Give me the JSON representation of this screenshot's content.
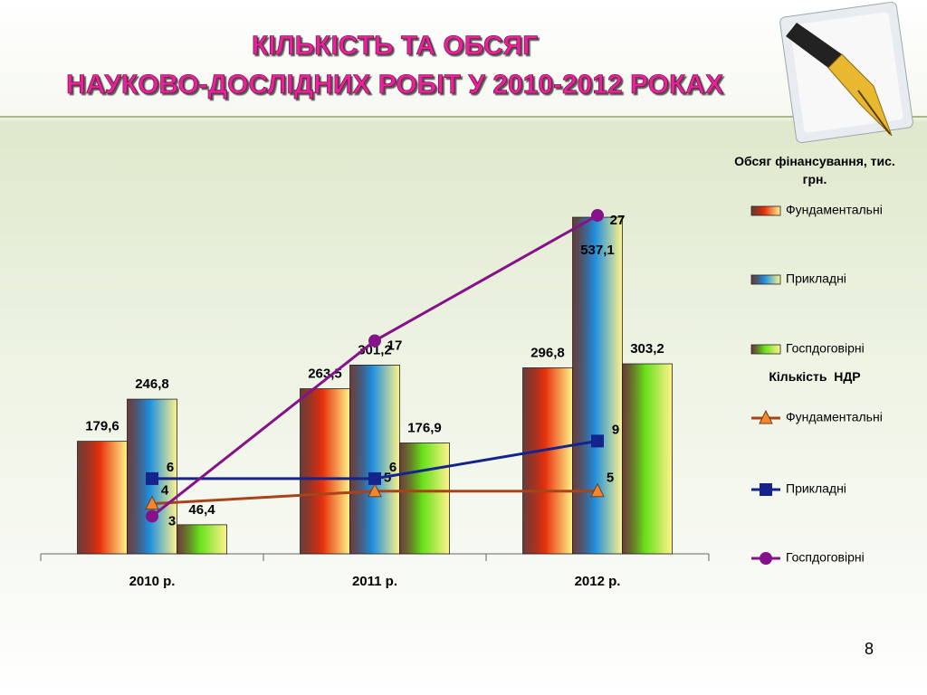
{
  "chart_data": {
    "type": "bar",
    "title": [
      "КІЛЬКІСТЬ ТА ОБСЯГ",
      "НАУКОВО-ДОСЛІДНИХ РОБІТ У 2010-2012 РОКАХ"
    ],
    "categories": [
      "2010 р.",
      "2011 р.",
      "2012 р."
    ],
    "bar_legend_title": "Обсяг фінансування, тис. грн.",
    "line_legend_title": "Кількість  НДР",
    "ylim": [
      0,
      600
    ],
    "y2lim": [
      0,
      30
    ],
    "series": [
      {
        "name": "Фундаментальні",
        "color": "#e8300c",
        "values": [
          179.6,
          263.5,
          296.8
        ],
        "value_labels": [
          "179,6",
          "263,5",
          "296,8"
        ]
      },
      {
        "name": "Прикладні",
        "color": "#1e8fe0",
        "values": [
          246.8,
          301.2,
          537.1
        ],
        "value_labels": [
          "246,8",
          "301,2",
          "537,1"
        ]
      },
      {
        "name": "Госпдоговірні",
        "color": "#66e01a",
        "values": [
          46.4,
          176.9,
          303.2
        ],
        "value_labels": [
          "46,4",
          "176,9",
          "303,2"
        ]
      },
      {
        "name": "Фундаментальні",
        "type": "line",
        "axis": "y2",
        "color": "#a8441a",
        "marker": "triangle",
        "values": [
          4,
          5,
          5
        ]
      },
      {
        "name": "Прикладні",
        "type": "line",
        "axis": "y2",
        "color": "#14248c",
        "marker": "square",
        "values": [
          6,
          6,
          9
        ]
      },
      {
        "name": "Госпдоговірні",
        "type": "line",
        "axis": "y2",
        "color": "#86128a",
        "marker": "circle",
        "values": [
          3,
          17,
          27
        ]
      }
    ]
  },
  "slide_number": "8"
}
